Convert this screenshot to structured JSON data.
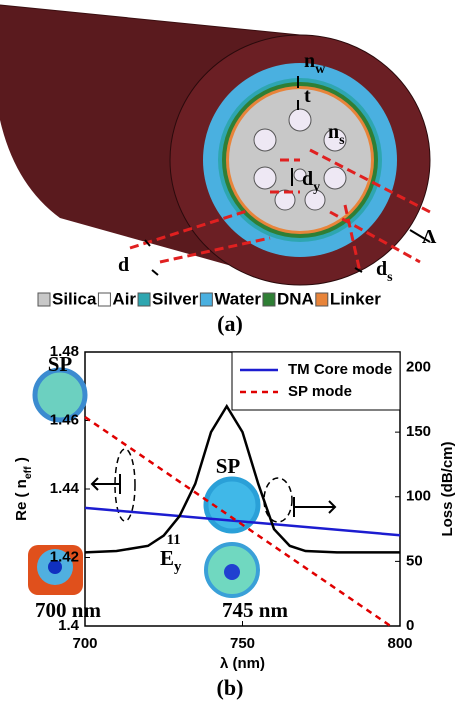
{
  "figure_a": {
    "panel_label": "(a)",
    "labels": [
      {
        "text": "n",
        "sub": "w"
      },
      {
        "text": "t"
      },
      {
        "text": "n",
        "sub": "s"
      },
      {
        "text": "d",
        "sub": "y"
      },
      {
        "text": "d"
      },
      {
        "text": "Λ"
      },
      {
        "text": "d",
        "sub": "s"
      }
    ],
    "legend": [
      {
        "label": "Silica",
        "color": "#c8c8c8"
      },
      {
        "label": "Air",
        "color": "#ffffff"
      },
      {
        "label": "Silver",
        "color": "#2ea6b0"
      },
      {
        "label": "Water",
        "color": "#4ab0e0"
      },
      {
        "label": "DNA",
        "color": "#2f7f35"
      },
      {
        "label": "Linker",
        "color": "#e8843a"
      }
    ]
  },
  "chart_data": {
    "type": "line",
    "panel_label": "(b)",
    "xlabel": "λ (nm)",
    "ylabel": {
      "text": "Re ( n",
      "sub": "eff",
      "tail": " )"
    },
    "y2label": "Loss (dB/cm)",
    "xlim": [
      700,
      800
    ],
    "xticks": [
      700,
      750,
      800
    ],
    "ylim": [
      1.4,
      1.48
    ],
    "yticks": [
      1.4,
      1.42,
      1.44,
      1.46,
      1.48
    ],
    "y2lim": [
      0,
      212
    ],
    "y2ticks": [
      0,
      50,
      100,
      150,
      200
    ],
    "legend_position": "upper right",
    "series": [
      {
        "name": "TM Core mode",
        "color": "#1c1cd0",
        "linestyle": "solid",
        "x": [
          700,
          800
        ],
        "values": [
          1.4345,
          1.4265
        ]
      },
      {
        "name": "SP    mode",
        "color": "#e00000",
        "linestyle": "dashed",
        "x": [
          700,
          797
        ],
        "values": [
          1.461,
          1.4
        ]
      },
      {
        "color": "#000000",
        "linestyle": "solid",
        "axis": "y2",
        "x": [
          700,
          710,
          720,
          725,
          730,
          735,
          740,
          745,
          750,
          755,
          760,
          765,
          770,
          780,
          790,
          800
        ],
        "values": [
          57,
          58,
          62,
          70,
          85,
          110,
          150,
          170,
          150,
          110,
          75,
          62,
          58,
          57,
          57,
          57
        ]
      }
    ],
    "annotations": [
      {
        "text": "SP"
      },
      {
        "text": "SP"
      },
      {
        "text": "E",
        "sub": "y",
        "sup": "11"
      },
      {
        "text": "700 nm"
      },
      {
        "text": "745 nm"
      }
    ]
  }
}
